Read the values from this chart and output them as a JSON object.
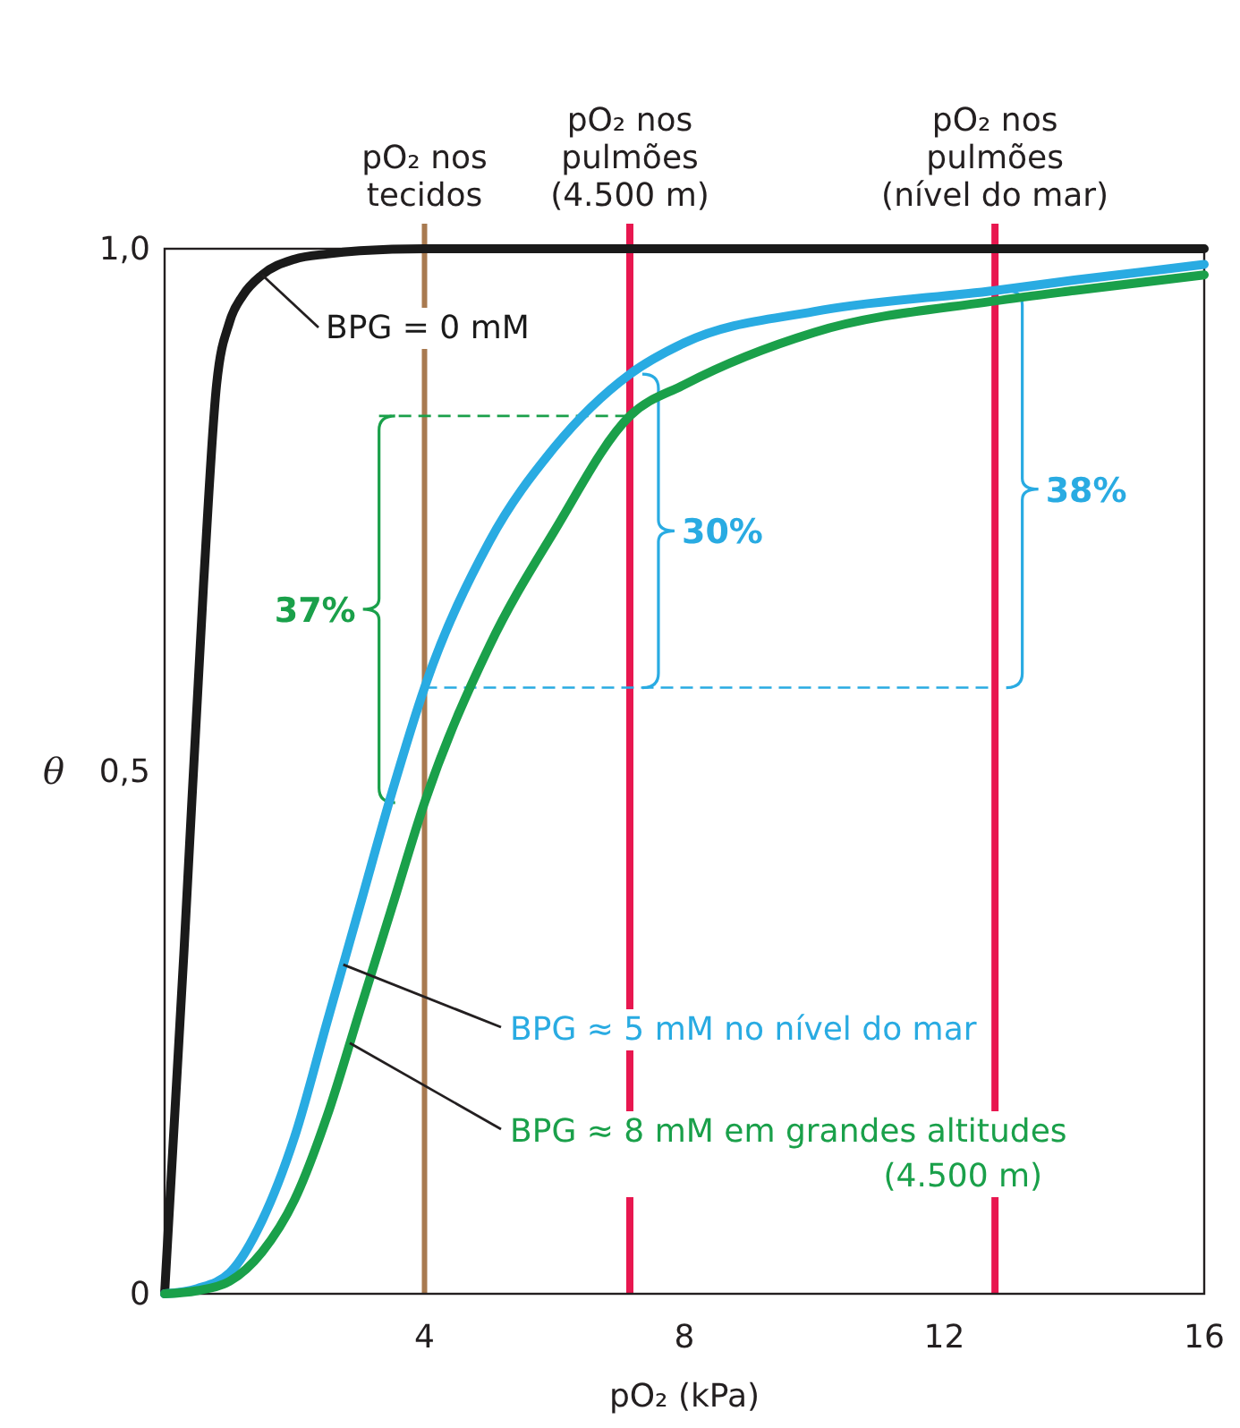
{
  "chart_data": {
    "type": "line",
    "xlabel": "pO₂ (kPa)",
    "ylabel": "θ",
    "xlim": [
      0,
      16
    ],
    "ylim": [
      0,
      1
    ],
    "xticks": [
      4,
      8,
      12,
      16
    ],
    "yticks": [
      {
        "value": 0,
        "label": "0"
      },
      {
        "value": 0.5,
        "label": "0,5"
      },
      {
        "value": 1,
        "label": "1,0"
      }
    ],
    "grid": false,
    "legend": false,
    "marker": "none",
    "line_style": "solid",
    "series": [
      {
        "name": "BPG = 0 mM",
        "color": "#1a1a1a",
        "x": [
          0,
          0.3,
          0.6,
          0.8,
          1,
          1.2,
          1.5,
          2,
          2.5,
          3,
          4,
          6,
          8,
          10,
          12,
          16
        ],
        "values": [
          0,
          0.33,
          0.68,
          0.87,
          0.93,
          0.955,
          0.975,
          0.99,
          0.995,
          0.998,
          1,
          1,
          1,
          1,
          1,
          1
        ]
      },
      {
        "name": "BPG ≈ 5 mM no nível do mar",
        "color": "#29abe2",
        "x": [
          0,
          0.5,
          1,
          1.5,
          2,
          2.5,
          3,
          3.5,
          4,
          5,
          6,
          7.16,
          8,
          10,
          12.78,
          14,
          16
        ],
        "values": [
          0,
          0.005,
          0.02,
          0.07,
          0.15,
          0.26,
          0.37,
          0.48,
          0.58,
          0.72,
          0.81,
          0.88,
          0.91,
          0.94,
          0.96,
          0.97,
          0.985
        ]
      },
      {
        "name": "BPG ≈ 8 mM em grandes altitudes (4.500 m)",
        "color": "#1aa04a",
        "x": [
          0,
          0.5,
          1,
          1.5,
          2,
          2.5,
          3,
          3.5,
          4,
          5,
          6,
          7.16,
          8,
          10,
          12.78,
          14,
          16
        ],
        "values": [
          0,
          0.003,
          0.012,
          0.04,
          0.09,
          0.17,
          0.27,
          0.37,
          0.47,
          0.62,
          0.73,
          0.84,
          0.87,
          0.92,
          0.95,
          0.96,
          0.975
        ]
      }
    ],
    "ref_lines": [
      {
        "axis": "x",
        "value": 4,
        "label": "pO₂ nos tecidos",
        "color": "#a87a50"
      },
      {
        "axis": "x",
        "value": 7.16,
        "label": "pO₂ nos pulmões (4.500 m)",
        "color": "#e8174f"
      },
      {
        "axis": "x",
        "value": 12.78,
        "label": "pO₂ nos pulmões (nível do mar)",
        "color": "#e8174f"
      },
      {
        "axis": "y",
        "value": 0.58,
        "color": "#29abe2",
        "line_style": "dashed"
      }
    ],
    "annotations": [
      "37%",
      "30%",
      "38%"
    ]
  }
}
